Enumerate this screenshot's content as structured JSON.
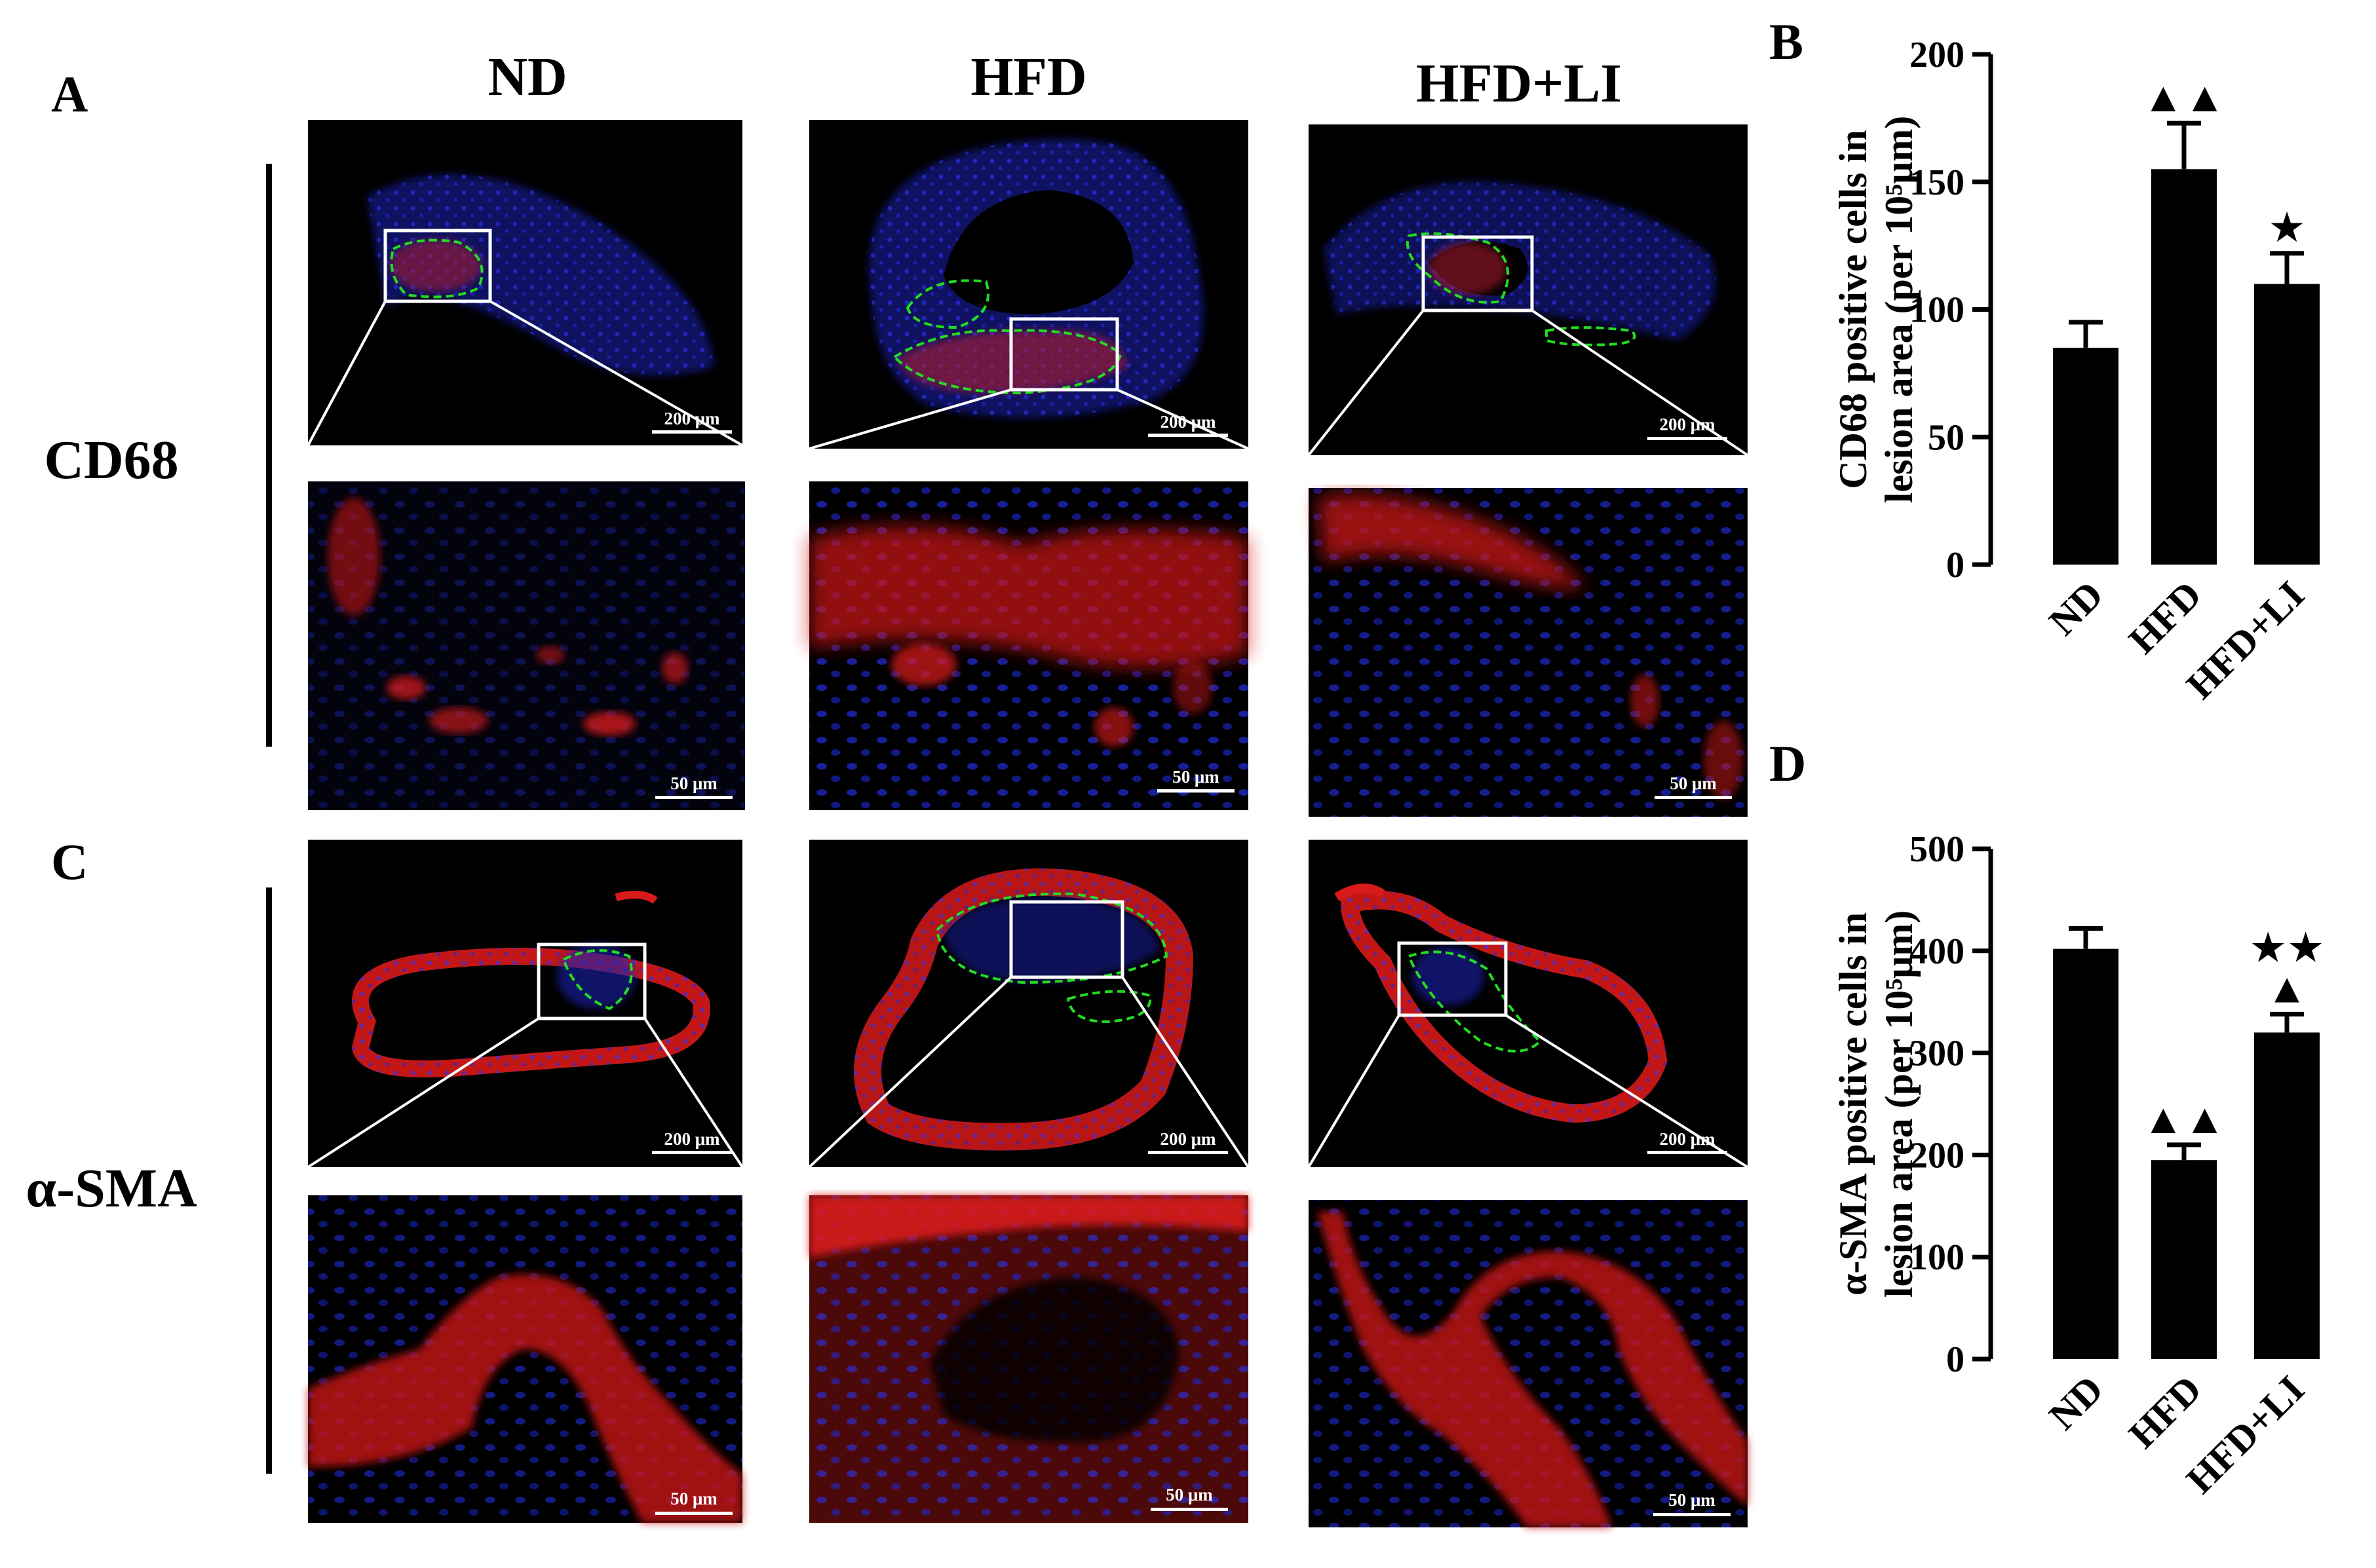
{
  "figure": {
    "panel_labels": [
      "A",
      "B",
      "C",
      "D"
    ],
    "column_labels": [
      "ND",
      "HFD",
      "HFD+LI"
    ],
    "row_labels": [
      "CD68",
      "α-SMA"
    ],
    "scale_bar_large": "200 μm",
    "scale_bar_small": "50 μm",
    "colors": {
      "nuclei_stain": "#2030ff",
      "marker_stain": "#ff1010",
      "lesion_outline": "#22dd22",
      "background": "#000000"
    }
  },
  "chart_data": [
    {
      "panel": "B",
      "type": "bar",
      "categories": [
        "ND",
        "HFD",
        "HFD+LI"
      ],
      "values": [
        85,
        155,
        110
      ],
      "errors": [
        10,
        18,
        12
      ],
      "ylabel_lines": [
        "CD68 positive cells in",
        "lesion area (per 10⁵μm)"
      ],
      "ylim": [
        0,
        200
      ],
      "yticks": [
        0,
        50,
        100,
        150,
        200
      ],
      "annotations": [
        "",
        "▲▲",
        "★"
      ]
    },
    {
      "panel": "D",
      "type": "bar",
      "categories": [
        "ND",
        "HFD",
        "HFD+LI"
      ],
      "values": [
        402,
        195,
        320
      ],
      "errors": [
        20,
        15,
        18
      ],
      "ylabel_lines": [
        "α-SMA positive cells in",
        "lesion area (per 10⁵μm)"
      ],
      "ylim": [
        0,
        500
      ],
      "yticks": [
        0,
        100,
        200,
        300,
        400,
        500
      ],
      "annotations": [
        "",
        "▲▲",
        "★★▲"
      ]
    }
  ]
}
